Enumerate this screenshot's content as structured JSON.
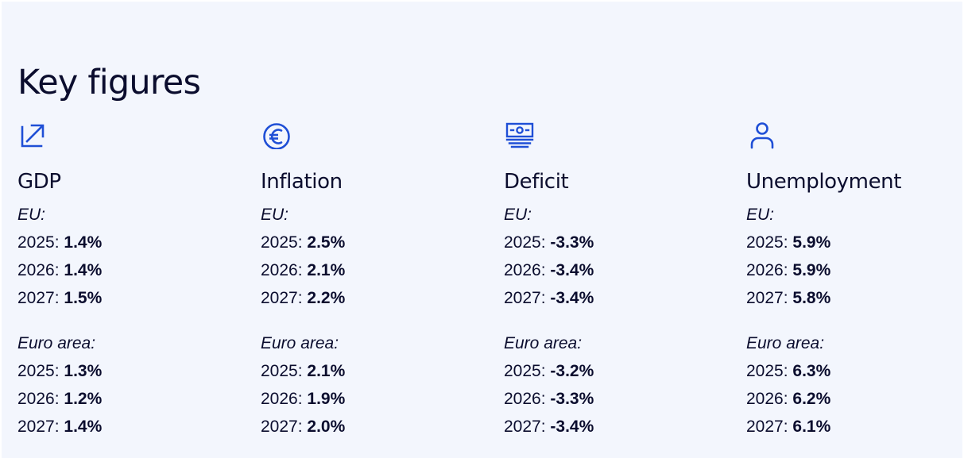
{
  "heading": "Key figures",
  "accent_color": "#1f4fd6",
  "columns": [
    {
      "title": "GDP",
      "icon": "trend-up-arrow-icon",
      "eu_label": "EU:",
      "eu": [
        {
          "year": "2025:",
          "value": "1.4%"
        },
        {
          "year": "2026:",
          "value": "1.4%"
        },
        {
          "year": "2027:",
          "value": "1.5%"
        }
      ],
      "euro_label": "Euro area:",
      "euro": [
        {
          "year": "2025:",
          "value": "1.3%"
        },
        {
          "year": "2026:",
          "value": "1.2%"
        },
        {
          "year": "2027:",
          "value": "1.4%"
        }
      ]
    },
    {
      "title": "Inflation",
      "icon": "euro-coin-icon",
      "eu_label": "EU:",
      "eu": [
        {
          "year": "2025:",
          "value": "2.5%"
        },
        {
          "year": "2026:",
          "value": "2.1%"
        },
        {
          "year": "2027:",
          "value": "2.2%"
        }
      ],
      "euro_label": "Euro area:",
      "euro": [
        {
          "year": "2025:",
          "value": "2.1%"
        },
        {
          "year": "2026:",
          "value": "1.9%"
        },
        {
          "year": "2027:",
          "value": "2.0%"
        }
      ]
    },
    {
      "title": "Deficit",
      "icon": "banknotes-stack-icon",
      "eu_label": "EU:",
      "eu": [
        {
          "year": "2025:",
          "value": "-3.3%"
        },
        {
          "year": "2026:",
          "value": "-3.4%"
        },
        {
          "year": "2027:",
          "value": "-3.4%"
        }
      ],
      "euro_label": "Euro area:",
      "euro": [
        {
          "year": "2025:",
          "value": "-3.2%"
        },
        {
          "year": "2026:",
          "value": "-3.3%"
        },
        {
          "year": "2027:",
          "value": "-3.4%"
        }
      ]
    },
    {
      "title": "Unemployment",
      "icon": "person-icon",
      "eu_label": "EU:",
      "eu": [
        {
          "year": "2025:",
          "value": "5.9%"
        },
        {
          "year": "2026:",
          "value": "5.9%"
        },
        {
          "year": "2027:",
          "value": "5.8%"
        }
      ],
      "euro_label": "Euro area:",
      "euro": [
        {
          "year": "2025:",
          "value": "6.3%"
        },
        {
          "year": "2026:",
          "value": "6.2%"
        },
        {
          "year": "2027:",
          "value": "6.1%"
        }
      ]
    }
  ]
}
